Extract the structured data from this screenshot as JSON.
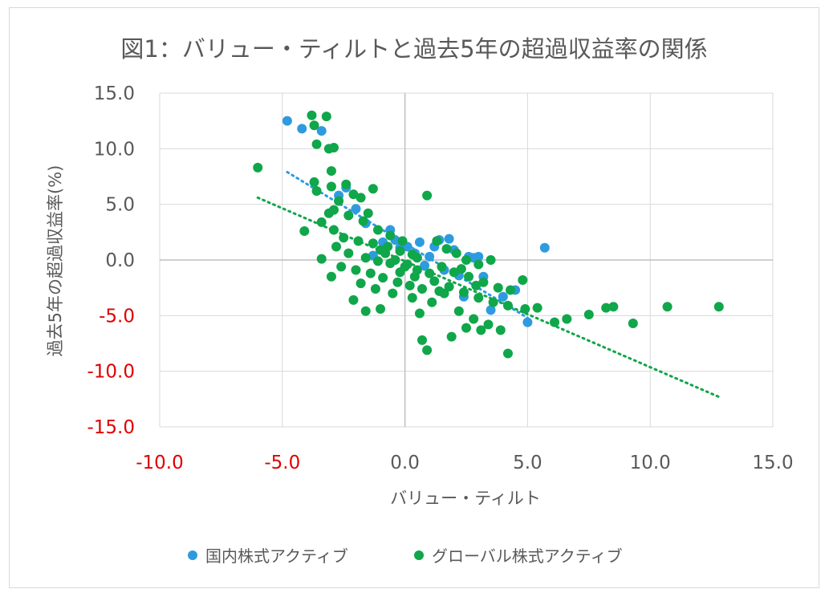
{
  "chart_data": {
    "type": "scatter",
    "title": "図1：バリュー・ティルトと過去5年の超過収益率の関係",
    "xlabel": "バリュー・ティルト",
    "ylabel": "過去5年の超過収益率(%)",
    "xlim": [
      -10,
      15
    ],
    "ylim": [
      -15,
      15
    ],
    "x_ticks": [
      "-10.0",
      "-5.0",
      "0.0",
      "5.0",
      "10.0",
      "15.0"
    ],
    "y_ticks": [
      "15.0",
      "10.0",
      "5.0",
      "0.0",
      "-5.0",
      "-10.0",
      "-15.0"
    ],
    "negative_tick_color": "#e00000",
    "positive_tick_color": "#595959",
    "grid": true,
    "legend_position": "bottom",
    "series": [
      {
        "name": "国内株式アクティブ",
        "color": "#2e9be0",
        "trendline": {
          "type": "linear",
          "from": [
            -4.8,
            7.9
          ],
          "to": [
            5.0,
            -5.2
          ]
        },
        "points": [
          [
            -4.8,
            12.5
          ],
          [
            -4.2,
            11.8
          ],
          [
            -3.4,
            11.6
          ],
          [
            -2.7,
            5.8
          ],
          [
            -2.4,
            6.5
          ],
          [
            -2.0,
            4.6
          ],
          [
            -1.6,
            3.3
          ],
          [
            -1.3,
            0.4
          ],
          [
            -0.9,
            1.6
          ],
          [
            -0.6,
            2.7
          ],
          [
            -0.4,
            1.8
          ],
          [
            -0.2,
            1.1
          ],
          [
            0.1,
            1.2
          ],
          [
            0.4,
            0.6
          ],
          [
            0.6,
            1.6
          ],
          [
            0.8,
            -0.5
          ],
          [
            1.0,
            0.3
          ],
          [
            1.2,
            1.2
          ],
          [
            1.4,
            1.8
          ],
          [
            1.6,
            -0.9
          ],
          [
            1.8,
            1.9
          ],
          [
            2.0,
            0.9
          ],
          [
            2.2,
            -1.4
          ],
          [
            2.4,
            -3.3
          ],
          [
            2.6,
            0.3
          ],
          [
            2.8,
            0.2
          ],
          [
            3.0,
            0.3
          ],
          [
            3.2,
            -1.5
          ],
          [
            3.5,
            -4.5
          ],
          [
            4.0,
            -3.3
          ],
          [
            4.5,
            -2.7
          ],
          [
            5.0,
            -5.6
          ],
          [
            5.7,
            1.1
          ]
        ]
      },
      {
        "name": "グローバル株式アクティブ",
        "color": "#10a64a",
        "trendline": {
          "type": "linear",
          "from": [
            -6.0,
            5.6
          ],
          "to": [
            12.8,
            -12.3
          ]
        },
        "points": [
          [
            -6.0,
            8.3
          ],
          [
            -3.8,
            13.0
          ],
          [
            -3.2,
            12.9
          ],
          [
            -3.7,
            12.1
          ],
          [
            -3.1,
            10.0
          ],
          [
            -3.6,
            10.4
          ],
          [
            -2.9,
            10.1
          ],
          [
            -3.0,
            8.0
          ],
          [
            -3.7,
            7.0
          ],
          [
            -3.0,
            6.6
          ],
          [
            -3.6,
            6.2
          ],
          [
            -2.4,
            6.8
          ],
          [
            -2.1,
            5.9
          ],
          [
            -1.8,
            5.6
          ],
          [
            -1.3,
            6.4
          ],
          [
            -1.5,
            4.2
          ],
          [
            -2.7,
            5.3
          ],
          [
            -3.1,
            4.2
          ],
          [
            -3.4,
            3.4
          ],
          [
            -2.9,
            4.5
          ],
          [
            -2.3,
            4.0
          ],
          [
            -1.7,
            3.5
          ],
          [
            -1.1,
            2.7
          ],
          [
            -0.6,
            2.2
          ],
          [
            -2.9,
            2.7
          ],
          [
            -4.1,
            2.6
          ],
          [
            -2.5,
            2.0
          ],
          [
            -1.9,
            1.7
          ],
          [
            -1.3,
            1.5
          ],
          [
            -0.7,
            1.2
          ],
          [
            -0.2,
            0.8
          ],
          [
            0.3,
            0.5
          ],
          [
            -2.8,
            1.2
          ],
          [
            -2.3,
            0.6
          ],
          [
            -1.6,
            0.2
          ],
          [
            -1.1,
            -0.1
          ],
          [
            -0.6,
            -0.3
          ],
          [
            0.0,
            -0.6
          ],
          [
            0.5,
            -0.9
          ],
          [
            1.0,
            -1.2
          ],
          [
            -3.4,
            0.1
          ],
          [
            -2.6,
            -0.6
          ],
          [
            -2.0,
            -0.9
          ],
          [
            -1.4,
            -1.2
          ],
          [
            -0.9,
            -1.6
          ],
          [
            -0.3,
            -2.0
          ],
          [
            0.2,
            -2.3
          ],
          [
            0.7,
            -2.6
          ],
          [
            -3.0,
            -1.5
          ],
          [
            -1.8,
            -2.1
          ],
          [
            -1.2,
            -2.6
          ],
          [
            -0.5,
            -3.0
          ],
          [
            0.3,
            -3.4
          ],
          [
            1.1,
            -3.8
          ],
          [
            -2.1,
            -3.6
          ],
          [
            -1.6,
            -4.6
          ],
          [
            -1.0,
            -4.4
          ],
          [
            0.6,
            -4.8
          ],
          [
            0.7,
            -7.2
          ],
          [
            0.9,
            -8.1
          ],
          [
            0.9,
            5.8
          ],
          [
            1.3,
            1.7
          ],
          [
            1.7,
            1.0
          ],
          [
            2.1,
            0.6
          ],
          [
            2.5,
            0.0
          ],
          [
            3.0,
            -0.4
          ],
          [
            3.5,
            0.0
          ],
          [
            1.5,
            -0.6
          ],
          [
            2.0,
            -1.1
          ],
          [
            2.6,
            -1.5
          ],
          [
            3.2,
            -2.0
          ],
          [
            3.8,
            -2.5
          ],
          [
            4.3,
            -2.7
          ],
          [
            4.8,
            -1.8
          ],
          [
            1.8,
            -2.4
          ],
          [
            2.4,
            -2.9
          ],
          [
            3.0,
            -3.4
          ],
          [
            3.6,
            -3.8
          ],
          [
            4.2,
            -4.1
          ],
          [
            1.6,
            -3.0
          ],
          [
            2.2,
            -4.6
          ],
          [
            2.8,
            -5.3
          ],
          [
            3.4,
            -5.8
          ],
          [
            3.9,
            -6.3
          ],
          [
            1.9,
            -6.9
          ],
          [
            2.5,
            -6.1
          ],
          [
            3.1,
            -6.3
          ],
          [
            4.2,
            -8.4
          ],
          [
            4.9,
            -4.4
          ],
          [
            5.4,
            -4.3
          ],
          [
            6.1,
            -5.6
          ],
          [
            6.6,
            -5.3
          ],
          [
            7.5,
            -4.9
          ],
          [
            8.2,
            -4.3
          ],
          [
            8.5,
            -4.2
          ],
          [
            9.3,
            -5.7
          ],
          [
            10.7,
            -4.2
          ],
          [
            12.8,
            -4.2
          ],
          [
            -0.8,
            0.6
          ],
          [
            -0.4,
            0.0
          ],
          [
            0.1,
            -0.4
          ],
          [
            0.5,
            0.2
          ],
          [
            -0.2,
            -1.1
          ],
          [
            0.4,
            -1.5
          ],
          [
            1.2,
            -1.9
          ],
          [
            -1.0,
            0.9
          ],
          [
            -0.1,
            1.7
          ],
          [
            1.4,
            -2.8
          ],
          [
            2.3,
            -0.8
          ],
          [
            2.9,
            -2.3
          ]
        ]
      }
    ]
  }
}
